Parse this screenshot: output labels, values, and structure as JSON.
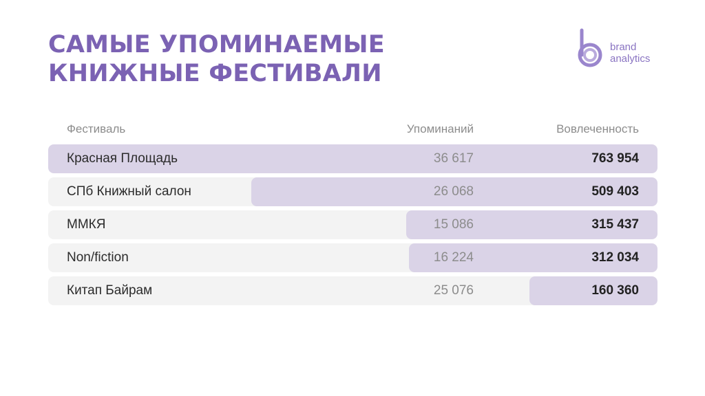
{
  "title": "Самые упоминаемые книжные фестивали",
  "logo": {
    "line1": "brand",
    "line2": "analytics",
    "icon": "brand-analytics-logo-icon"
  },
  "colors": {
    "title": "#7b62b3",
    "row_background": "#f3f3f3",
    "bar": "#dad3e7",
    "muted_text": "#8c8c8c"
  },
  "chart_data": {
    "type": "table",
    "columns": [
      "Фестиваль",
      "Упоминаний",
      "Вовлеченность"
    ],
    "engagement_max": 763954,
    "rows": [
      {
        "festival": "Красная Площадь",
        "mentions": "36 617",
        "engagement": "763 954",
        "engagement_value": 763954
      },
      {
        "festival": "СПб Книжный салон",
        "mentions": "26 068",
        "engagement": "509 403",
        "engagement_value": 509403
      },
      {
        "festival": "ММКЯ",
        "mentions": "15 086",
        "engagement": "315 437",
        "engagement_value": 315437
      },
      {
        "festival": "Non/fiction",
        "mentions": "16 224",
        "engagement": "312 034",
        "engagement_value": 312034
      },
      {
        "festival": "Китап Байрам",
        "mentions": "25 076",
        "engagement": "160 360",
        "engagement_value": 160360
      }
    ]
  }
}
